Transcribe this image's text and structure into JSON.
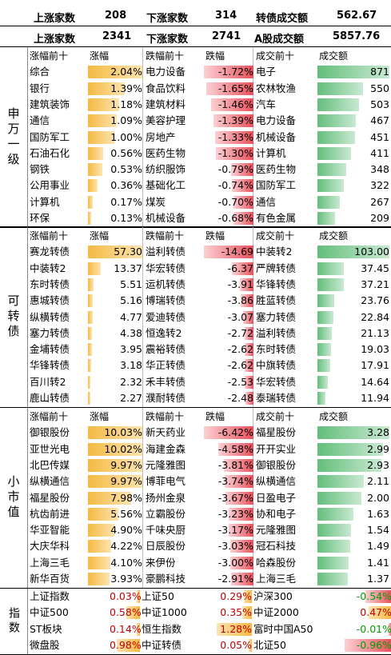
{
  "summary": [
    {
      "up_label": "上涨家数",
      "up": "208",
      "down_label": "下涨家数",
      "down": "314",
      "amt_label": "转债成交额",
      "amt": "562.67"
    },
    {
      "up_label": "上涨家数",
      "up": "2341",
      "down_label": "下涨家数",
      "down": "2741",
      "amt_label": "A股成交额",
      "amt": "5857.76"
    }
  ],
  "sections": [
    {
      "label": "申万一级",
      "headers": [
        "涨幅前十",
        "涨幅",
        "跌幅前十",
        "跌幅",
        "成交前十",
        "成交额"
      ],
      "rows": [
        [
          "综合",
          "2.04%",
          "电力设备",
          "-1.72%",
          "电子",
          "871"
        ],
        [
          "银行",
          "1.39%",
          "食品饮料",
          "-1.65%",
          "农林牧渔",
          "550"
        ],
        [
          "建筑装饰",
          "1.18%",
          "建筑材料",
          "-1.46%",
          "汽车",
          "503"
        ],
        [
          "通信",
          "1.09%",
          "美容护理",
          "-1.39%",
          "电力设备",
          "467"
        ],
        [
          "国防军工",
          "1.00%",
          "房地产",
          "-1.33%",
          "机械设备",
          "451"
        ],
        [
          "石油石化",
          "0.56%",
          "医药生物",
          "-1.30%",
          "计算机",
          "411"
        ],
        [
          "钢铁",
          "0.53%",
          "纺织服饰",
          "-0.79%",
          "医药生物",
          "348"
        ],
        [
          "公用事业",
          "0.36%",
          "基础化工",
          "-0.74%",
          "国防军工",
          "322"
        ],
        [
          "计算机",
          "0.17%",
          "煤炭",
          "-0.70%",
          "通信",
          "267"
        ],
        [
          "环保",
          "0.13%",
          "机械设备",
          "-0.68%",
          "有色金属",
          "209"
        ]
      ]
    },
    {
      "label": "可转债",
      "headers": [
        "涨幅前十",
        "涨幅",
        "跌幅前十",
        "跌幅",
        "成交前十",
        "成交额"
      ],
      "rows": [
        [
          "赛龙转债",
          "57.30",
          "溢利转债",
          "-14.69",
          "中装转2",
          "103.00"
        ],
        [
          "中装转2",
          "13.37",
          "华宏转债",
          "-6.37",
          "严牌转债",
          "37.45"
        ],
        [
          "东时转债",
          "5.51",
          "运机转债",
          "-3.91",
          "华锋转债",
          "37.21"
        ],
        [
          "惠城转债",
          "5.16",
          "博瑞转债",
          "-3.86",
          "胜蓝转债",
          "23.76"
        ],
        [
          "纵横转债",
          "4.77",
          "爱迪转债",
          "-3.07",
          "塞力转债",
          "22.84"
        ],
        [
          "塞力转债",
          "4.38",
          "恒逸转2",
          "-2.72",
          "溢利转债",
          "21.13"
        ],
        [
          "金埔转债",
          "3.95",
          "震裕转债",
          "-2.62",
          "东时转债",
          "19.03"
        ],
        [
          "华锋转债",
          "3.18",
          "华正转债",
          "-2.62",
          "中旗转债",
          "17.91"
        ],
        [
          "百川转2",
          "2.32",
          "禾丰转债",
          "-2.53",
          "华宏转债",
          "14.64"
        ],
        [
          "鹿山转债",
          "2.27",
          "濮耐转债",
          "-2.48",
          "泰瑞转债",
          "11.94"
        ]
      ]
    },
    {
      "label": "小市值",
      "headers": [
        "涨幅前十",
        "涨幅",
        "跌幅前十",
        "跌幅",
        "成交前十",
        "成交额"
      ],
      "rows": [
        [
          "御银股份",
          "10.03%",
          "新天药业",
          "-6.42%",
          "福星股份",
          "3.28"
        ],
        [
          "亚世光电",
          "10.02%",
          "海建金森",
          "-4.58%",
          "开开实业",
          "2.99"
        ],
        [
          "北巴传媒",
          "9.97%",
          "元隆雅图",
          "-3.81%",
          "御银股份",
          "2.93"
        ],
        [
          "纵横通信",
          "9.97%",
          "博菲电气",
          "-3.74%",
          "纵横通信",
          "2.11"
        ],
        [
          "福星股份",
          "7.98%",
          "扬州金泉",
          "-3.67%",
          "日盈电子",
          "2.00"
        ],
        [
          "杭齿前进",
          "5.56%",
          "立霸股份",
          "-3.23%",
          "协和电子",
          "1.63"
        ],
        [
          "华亚智能",
          "4.90%",
          "千味央厨",
          "-3.17%",
          "元隆雅图",
          "1.54"
        ],
        [
          "大庆华科",
          "4.22%",
          "日辰股份",
          "-3.03%",
          "冠石科技",
          "1.49"
        ],
        [
          "上海三毛",
          "4.10%",
          "来伊份",
          "-3.00%",
          "哈森股份",
          "1.41"
        ],
        [
          "新华百货",
          "3.93%",
          "豪鹏科技",
          "-2.91%",
          "上海三毛",
          "1.37"
        ]
      ]
    }
  ],
  "index_section": {
    "label": "指数",
    "rows": [
      [
        "上证指数",
        "0.03%",
        "上证50",
        "0.29%",
        "沪深300",
        "-0.54%"
      ],
      [
        "中证500",
        "0.58%",
        "中证1000",
        "0.35%",
        "中证2000",
        "0.47%"
      ],
      [
        "ST板块",
        "0.14%",
        "恒生指数",
        "1.28%",
        "富时中国A50",
        "-0.01%"
      ],
      [
        "微盘股",
        "0.98%",
        "中证转债",
        "0.05%",
        "北证50",
        "-0.96%"
      ]
    ]
  },
  "colors": {
    "up_bar": "#f5b942",
    "down_bar": "#e8505b",
    "amt_bar": "#63be7b"
  }
}
